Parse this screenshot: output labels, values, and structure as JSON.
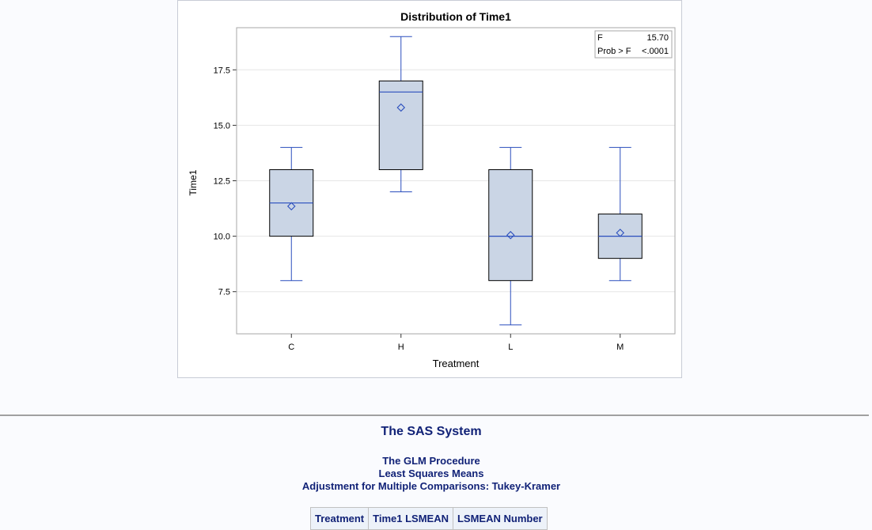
{
  "chart_data": {
    "type": "box",
    "title": "Distribution of Time1",
    "xlabel": "Treatment",
    "ylabel": "Time1",
    "ylim": [
      5.6,
      19.4
    ],
    "yticks": [
      "7.5",
      "10.0",
      "12.5",
      "15.0",
      "17.5"
    ],
    "ytick_values": [
      7.5,
      10.0,
      12.5,
      15.0,
      17.5
    ],
    "grid": true,
    "categories": [
      "C",
      "H",
      "L",
      "M"
    ],
    "boxes": [
      {
        "category": "C",
        "min": 8,
        "q1": 10,
        "median": 11.5,
        "q3": 13,
        "max": 14,
        "mean": 11.35
      },
      {
        "category": "H",
        "min": 12,
        "q1": 13,
        "median": 16.5,
        "q3": 17,
        "max": 19,
        "mean": 15.8
      },
      {
        "category": "L",
        "min": 6,
        "q1": 8,
        "median": 10,
        "q3": 13,
        "max": 14,
        "mean": 10.05
      },
      {
        "category": "M",
        "min": 8,
        "q1": 9,
        "median": 10,
        "q3": 11,
        "max": 14,
        "mean": 10.15
      }
    ],
    "stats_box": {
      "legend_position": "top-right",
      "rows": [
        {
          "label": "F",
          "value": "15.70"
        },
        {
          "label": "Prob > F",
          "value": "<.0001"
        }
      ]
    },
    "colors": {
      "box_fill": "#cad5e5",
      "box_stroke": "#000000",
      "median_line": "#2a4ebd",
      "whisker": "#2a4ebd",
      "mean_marker": "#2a4ebd",
      "grid": "#e6e6e6",
      "frame": "#a7a7a7"
    }
  },
  "output": {
    "system_title": "The SAS System",
    "procedure_title": "The GLM Procedure",
    "lsmeans_title": "Least Squares Means",
    "adjustment_title": "Adjustment for Multiple Comparisons: Tukey-Kramer",
    "table_headers": [
      "Treatment",
      "Time1 LSMEAN",
      "LSMEAN Number"
    ]
  }
}
